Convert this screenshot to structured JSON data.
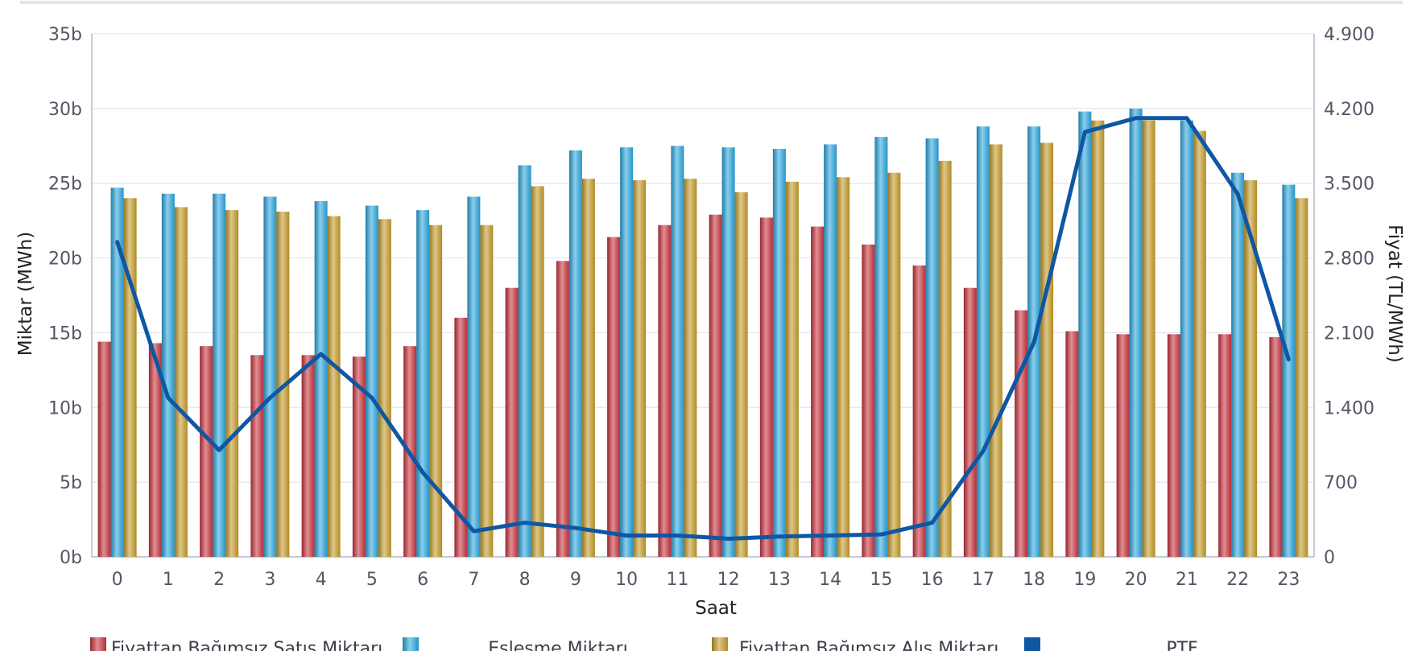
{
  "chart_data": {
    "type": "bar",
    "xlabel": "Saat",
    "ylabel": "Miktar (MWh)",
    "y2label": "Fiyat (TL/MWh)",
    "categories": [
      "0",
      "1",
      "2",
      "3",
      "4",
      "5",
      "6",
      "7",
      "8",
      "9",
      "10",
      "11",
      "12",
      "13",
      "14",
      "15",
      "16",
      "17",
      "18",
      "19",
      "20",
      "21",
      "22",
      "23"
    ],
    "ylim": [
      0,
      35000
    ],
    "y2lim": [
      0,
      4900
    ],
    "yticks": [
      {
        "value": 0,
        "label": "0b"
      },
      {
        "value": 5000,
        "label": "5b"
      },
      {
        "value": 10000,
        "label": "10b"
      },
      {
        "value": 15000,
        "label": "15b"
      },
      {
        "value": 20000,
        "label": "20b"
      },
      {
        "value": 25000,
        "label": "25b"
      },
      {
        "value": 30000,
        "label": "30b"
      },
      {
        "value": 35000,
        "label": "35b"
      }
    ],
    "y2ticks": [
      {
        "value": 0,
        "label": "0"
      },
      {
        "value": 700,
        "label": "700"
      },
      {
        "value": 1400,
        "label": "1.400"
      },
      {
        "value": 2100,
        "label": "2.100"
      },
      {
        "value": 2800,
        "label": "2.800"
      },
      {
        "value": 3500,
        "label": "3.500"
      },
      {
        "value": 4200,
        "label": "4.200"
      },
      {
        "value": 4900,
        "label": "4.900"
      }
    ],
    "grid": true,
    "legend_position": "bottom",
    "series": [
      {
        "name": "Fiyattan Bağımsız Satış Miktarı",
        "type": "bar",
        "axis": "left",
        "color": "#c8323c",
        "values": [
          14400,
          14300,
          14100,
          13500,
          13500,
          13400,
          14100,
          16000,
          18000,
          19800,
          21400,
          22200,
          22900,
          22700,
          22100,
          20900,
          19500,
          18000,
          16500,
          15100,
          14900,
          14900,
          14900,
          14700
        ]
      },
      {
        "name": "Eşleşme Miktarı",
        "type": "bar",
        "axis": "left",
        "color": "#2aa6de",
        "values": [
          24700,
          24300,
          24300,
          24100,
          23800,
          23500,
          23200,
          24100,
          26200,
          27200,
          27400,
          27500,
          27400,
          27300,
          27600,
          28100,
          28000,
          28800,
          28800,
          29800,
          30000,
          29200,
          25700,
          24900
        ]
      },
      {
        "name": "Fiyattan Bağımsız Alış Miktarı",
        "type": "bar",
        "axis": "left",
        "color": "#c49a28",
        "values": [
          24000,
          23400,
          23200,
          23100,
          22800,
          22600,
          22200,
          22200,
          24800,
          25300,
          25200,
          25300,
          24400,
          25100,
          25400,
          25700,
          26500,
          27600,
          27700,
          29200,
          29200,
          28500,
          25200,
          24000
        ]
      },
      {
        "name": "PTF",
        "type": "line",
        "axis": "right",
        "color": "#0f56a3",
        "values": [
          2950,
          1490,
          1000,
          1490,
          1900,
          1490,
          790,
          240,
          320,
          270,
          200,
          200,
          170,
          190,
          200,
          210,
          320,
          990,
          2010,
          3980,
          4110,
          4110,
          3400,
          1850
        ]
      }
    ]
  }
}
